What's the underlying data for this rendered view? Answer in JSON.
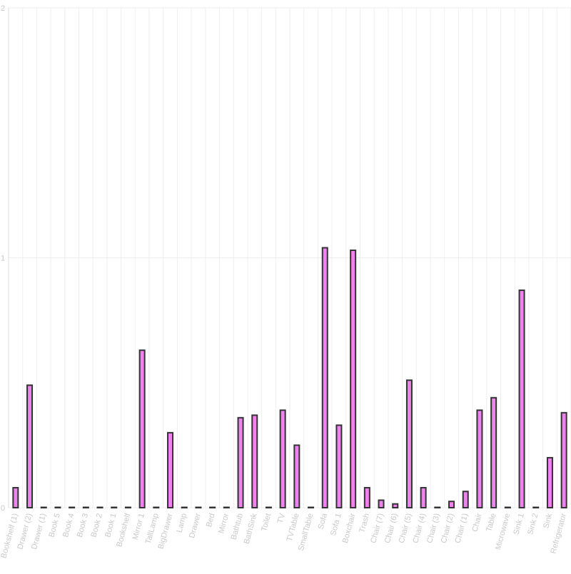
{
  "chart_data": {
    "type": "bar",
    "title": "",
    "xlabel": "",
    "ylabel": "",
    "ylim": [
      0,
      2
    ],
    "yticks": [
      0,
      1,
      2
    ],
    "grid": true,
    "legend": "none",
    "colors": {
      "bar_fill": "#ee82ee",
      "bar_stroke": "#333333",
      "grid": "#eeeeee"
    },
    "categories": [
      "Bookshelf (1)",
      "Drawer (2)",
      "Drawer (1)",
      "Book 5",
      "Book 4",
      "Book 3",
      "Book 2",
      "Book 1",
      "Bookshelf",
      "Mirror 1",
      "TallLamp",
      "BigDrawer",
      "Lamp",
      "Drawer",
      "Bed",
      "Mirror",
      "Bathtub",
      "BathSink",
      "Toilet",
      "TV",
      "TVTable",
      "SmallTable",
      "Sofa",
      "Sofa 1",
      "Boxchair",
      "Trash",
      "Chair (7)",
      "Chair (6)",
      "Chair (5)",
      "Chair (4)",
      "Chair (3)",
      "Chair (2)",
      "Chair (1)",
      "Chair",
      "Table",
      "Microwave",
      "Sink 1",
      "Sink 2",
      "Sink",
      "Refrigerator"
    ],
    "values": [
      0.08,
      0.49,
      0.0,
      0.0,
      0.0,
      0.0,
      0.0,
      0.0,
      0.0,
      0.63,
      0.0,
      0.3,
      0.0,
      0.0,
      0.0,
      0.0,
      0.36,
      0.37,
      0.0,
      0.39,
      0.25,
      0.0,
      1.04,
      0.33,
      1.03,
      0.08,
      0.03,
      0.015,
      0.51,
      0.08,
      0.0,
      0.025,
      0.065,
      0.39,
      0.44,
      0.0,
      0.87,
      0.0,
      0.2,
      0.38
    ]
  }
}
